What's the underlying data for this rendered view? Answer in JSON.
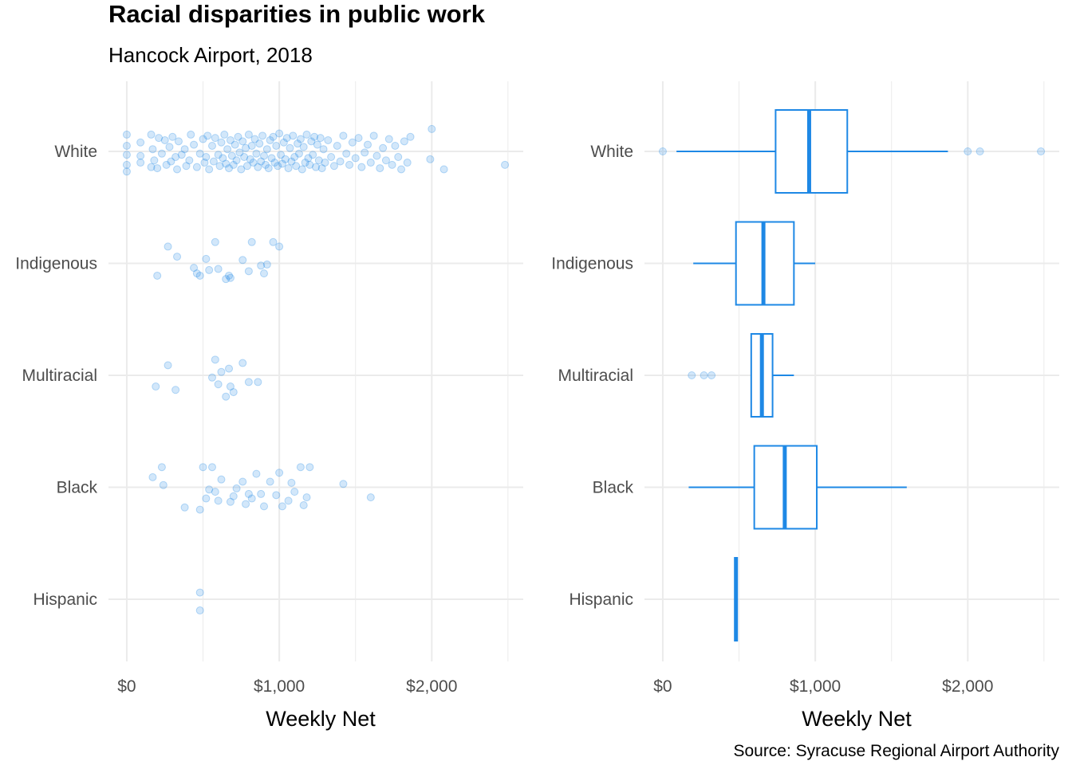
{
  "title": "Racial disparities in public work",
  "subtitle": "Hancock Airport, 2018",
  "caption": "Source: Syracuse Regional Airport Authority",
  "colors": {
    "accent": "#1e88e5",
    "grid": "#ebebeb"
  },
  "chart_data": [
    {
      "type": "scatter",
      "subtype": "jitter",
      "xlabel": "Weekly Net",
      "xlim": [
        -120,
        2600
      ],
      "x_ticks": [
        0,
        1000,
        2000
      ],
      "x_tick_labels": [
        "$0",
        "$1,000",
        "$2,000"
      ],
      "categories": [
        "White",
        "Indigenous",
        "Multiracial",
        "Black",
        "Hispanic"
      ],
      "grid": true,
      "point_alpha": 0.2,
      "points": {
        "White": [
          [
            0,
            -0.15
          ],
          [
            0,
            -0.05
          ],
          [
            0,
            0.03
          ],
          [
            0,
            0.12
          ],
          [
            0,
            0.18
          ],
          [
            90,
            -0.08
          ],
          [
            90,
            0.04
          ],
          [
            90,
            0.1
          ],
          [
            160,
            -0.15
          ],
          [
            160,
            0.14
          ],
          [
            170,
            -0.02
          ],
          [
            180,
            0.08
          ],
          [
            200,
            0.15
          ],
          [
            210,
            -0.12
          ],
          [
            230,
            0.02
          ],
          [
            250,
            -0.1
          ],
          [
            260,
            0.12
          ],
          [
            280,
            -0.04
          ],
          [
            290,
            0.09
          ],
          [
            300,
            -0.13
          ],
          [
            320,
            0.05
          ],
          [
            330,
            0.16
          ],
          [
            340,
            -0.09
          ],
          [
            360,
            0.03
          ],
          [
            380,
            -0.02
          ],
          [
            390,
            0.13
          ],
          [
            410,
            0.08
          ],
          [
            420,
            -0.15
          ],
          [
            440,
            -0.06
          ],
          [
            460,
            0.14
          ],
          [
            480,
            0.02
          ],
          [
            500,
            -0.11
          ],
          [
            510,
            0.1
          ],
          [
            520,
            0.05
          ],
          [
            530,
            -0.14
          ],
          [
            540,
            0.16
          ],
          [
            560,
            -0.05
          ],
          [
            570,
            0.09
          ],
          [
            580,
            -0.12
          ],
          [
            600,
            0.03
          ],
          [
            610,
            0.13
          ],
          [
            620,
            -0.08
          ],
          [
            630,
            0.06
          ],
          [
            640,
            -0.15
          ],
          [
            650,
            0.11
          ],
          [
            660,
            -0.02
          ],
          [
            670,
            0.15
          ],
          [
            680,
            -0.1
          ],
          [
            690,
            0.04
          ],
          [
            700,
            0.12
          ],
          [
            710,
            -0.06
          ],
          [
            720,
            0.08
          ],
          [
            730,
            -0.13
          ],
          [
            740,
            0.01
          ],
          [
            750,
            0.16
          ],
          [
            760,
            -0.09
          ],
          [
            770,
            0.05
          ],
          [
            780,
            -0.03
          ],
          [
            790,
            0.13
          ],
          [
            800,
            -0.15
          ],
          [
            810,
            0.07
          ],
          [
            820,
            -0.05
          ],
          [
            830,
            0.1
          ],
          [
            840,
            -0.11
          ],
          [
            850,
            0.02
          ],
          [
            860,
            0.14
          ],
          [
            870,
            -0.07
          ],
          [
            880,
            0.09
          ],
          [
            890,
            -0.14
          ],
          [
            900,
            0.04
          ],
          [
            910,
            0.12
          ],
          [
            920,
            -0.02
          ],
          [
            930,
            0.15
          ],
          [
            940,
            -0.1
          ],
          [
            950,
            0.06
          ],
          [
            960,
            -0.13
          ],
          [
            970,
            0.1
          ],
          [
            980,
            -0.05
          ],
          [
            990,
            0.13
          ],
          [
            1000,
            -0.16
          ],
          [
            1010,
            0.03
          ],
          [
            1020,
            0.11
          ],
          [
            1030,
            -0.08
          ],
          [
            1040,
            0.07
          ],
          [
            1050,
            -0.12
          ],
          [
            1060,
            0.15
          ],
          [
            1070,
            -0.03
          ],
          [
            1080,
            0.09
          ],
          [
            1090,
            -0.14
          ],
          [
            1100,
            0.05
          ],
          [
            1110,
            0.13
          ],
          [
            1120,
            -0.07
          ],
          [
            1130,
            0.02
          ],
          [
            1140,
            -0.11
          ],
          [
            1150,
            0.16
          ],
          [
            1160,
            -0.04
          ],
          [
            1170,
            0.1
          ],
          [
            1180,
            -0.15
          ],
          [
            1190,
            0.06
          ],
          [
            1200,
            0.12
          ],
          [
            1210,
            -0.09
          ],
          [
            1220,
            0.03
          ],
          [
            1230,
            -0.13
          ],
          [
            1240,
            0.14
          ],
          [
            1250,
            -0.06
          ],
          [
            1260,
            0.08
          ],
          [
            1270,
            -0.12
          ],
          [
            1280,
            0.15
          ],
          [
            1290,
            -0.02
          ],
          [
            1300,
            0.1
          ],
          [
            1320,
            -0.1
          ],
          [
            1340,
            0.05
          ],
          [
            1360,
            0.13
          ],
          [
            1380,
            -0.05
          ],
          [
            1400,
            0.09
          ],
          [
            1420,
            -0.14
          ],
          [
            1440,
            0.02
          ],
          [
            1460,
            0.12
          ],
          [
            1480,
            -0.08
          ],
          [
            1500,
            0.06
          ],
          [
            1520,
            -0.12
          ],
          [
            1540,
            0.14
          ],
          [
            1560,
            0.01
          ],
          [
            1580,
            -0.06
          ],
          [
            1600,
            0.1
          ],
          [
            1620,
            -0.14
          ],
          [
            1640,
            0.04
          ],
          [
            1660,
            0.15
          ],
          [
            1680,
            -0.03
          ],
          [
            1700,
            0.08
          ],
          [
            1720,
            -0.11
          ],
          [
            1740,
            0.12
          ],
          [
            1760,
            -0.05
          ],
          [
            1780,
            0.05
          ],
          [
            1800,
            0.16
          ],
          [
            1820,
            -0.09
          ],
          [
            1840,
            0.1
          ],
          [
            1860,
            -0.13
          ],
          [
            1990,
            0.07
          ],
          [
            2000,
            -0.2
          ],
          [
            2080,
            0.16
          ],
          [
            2480,
            0.12
          ]
        ],
        "Indigenous": [
          [
            200,
            0.11
          ],
          [
            270,
            -0.15
          ],
          [
            330,
            -0.06
          ],
          [
            440,
            0.04
          ],
          [
            460,
            0.09
          ],
          [
            480,
            0.11
          ],
          [
            520,
            -0.04
          ],
          [
            540,
            0.06
          ],
          [
            580,
            -0.19
          ],
          [
            600,
            0.05
          ],
          [
            650,
            0.14
          ],
          [
            670,
            0.11
          ],
          [
            680,
            0.13
          ],
          [
            760,
            -0.03
          ],
          [
            800,
            0.07
          ],
          [
            820,
            -0.19
          ],
          [
            880,
            0.02
          ],
          [
            900,
            0.09
          ],
          [
            920,
            0.01
          ],
          [
            960,
            -0.19
          ],
          [
            1000,
            -0.15
          ]
        ],
        "Multiracial": [
          [
            190,
            0.1
          ],
          [
            270,
            -0.09
          ],
          [
            320,
            0.13
          ],
          [
            560,
            0.02
          ],
          [
            580,
            -0.14
          ],
          [
            600,
            0.08
          ],
          [
            620,
            -0.03
          ],
          [
            650,
            0.19
          ],
          [
            670,
            -0.06
          ],
          [
            680,
            0.1
          ],
          [
            700,
            0.15
          ],
          [
            760,
            -0.11
          ],
          [
            800,
            0.06
          ],
          [
            860,
            0.06
          ]
        ],
        "Black": [
          [
            170,
            -0.09
          ],
          [
            230,
            -0.18
          ],
          [
            240,
            -0.02
          ],
          [
            380,
            0.18
          ],
          [
            480,
            0.2
          ],
          [
            500,
            -0.18
          ],
          [
            520,
            0.1
          ],
          [
            540,
            0.02
          ],
          [
            560,
            -0.18
          ],
          [
            580,
            0.04
          ],
          [
            600,
            0.12
          ],
          [
            620,
            -0.07
          ],
          [
            680,
            0.13
          ],
          [
            700,
            0.08
          ],
          [
            720,
            0.01
          ],
          [
            760,
            -0.05
          ],
          [
            780,
            0.15
          ],
          [
            800,
            0.06
          ],
          [
            820,
            0.1
          ],
          [
            850,
            -0.12
          ],
          [
            880,
            0.06
          ],
          [
            900,
            0.17
          ],
          [
            940,
            -0.05
          ],
          [
            980,
            0.07
          ],
          [
            1000,
            -0.13
          ],
          [
            1020,
            0.17
          ],
          [
            1060,
            0.12
          ],
          [
            1080,
            -0.04
          ],
          [
            1100,
            0.04
          ],
          [
            1140,
            -0.18
          ],
          [
            1160,
            0.16
          ],
          [
            1180,
            0.09
          ],
          [
            1200,
            -0.18
          ],
          [
            1420,
            -0.03
          ],
          [
            1600,
            0.09
          ]
        ],
        "Hispanic": [
          [
            480,
            0.1
          ],
          [
            480,
            -0.06
          ]
        ]
      }
    },
    {
      "type": "boxplot",
      "xlabel": "Weekly Net",
      "xlim": [
        -120,
        2600
      ],
      "x_ticks": [
        0,
        1000,
        2000
      ],
      "x_tick_labels": [
        "$0",
        "$1,000",
        "$2,000"
      ],
      "categories": [
        "White",
        "Indigenous",
        "Multiracial",
        "Black",
        "Hispanic"
      ],
      "grid": true,
      "boxes": {
        "White": {
          "min": 90,
          "q1": 740,
          "median": 960,
          "q3": 1210,
          "max": 1870,
          "outliers": [
            0,
            2000,
            2080,
            2480
          ]
        },
        "Indigenous": {
          "min": 200,
          "q1": 480,
          "median": 660,
          "q3": 860,
          "max": 1000,
          "outliers": []
        },
        "Multiracial": {
          "min": 580,
          "q1": 580,
          "median": 650,
          "q3": 720,
          "max": 860,
          "outliers": [
            190,
            270,
            320
          ]
        },
        "Black": {
          "min": 170,
          "q1": 600,
          "median": 800,
          "q3": 1010,
          "max": 1600,
          "outliers": []
        },
        "Hispanic": {
          "min": 480,
          "q1": 480,
          "median": 480,
          "q3": 480,
          "max": 480,
          "outliers": []
        }
      }
    }
  ]
}
